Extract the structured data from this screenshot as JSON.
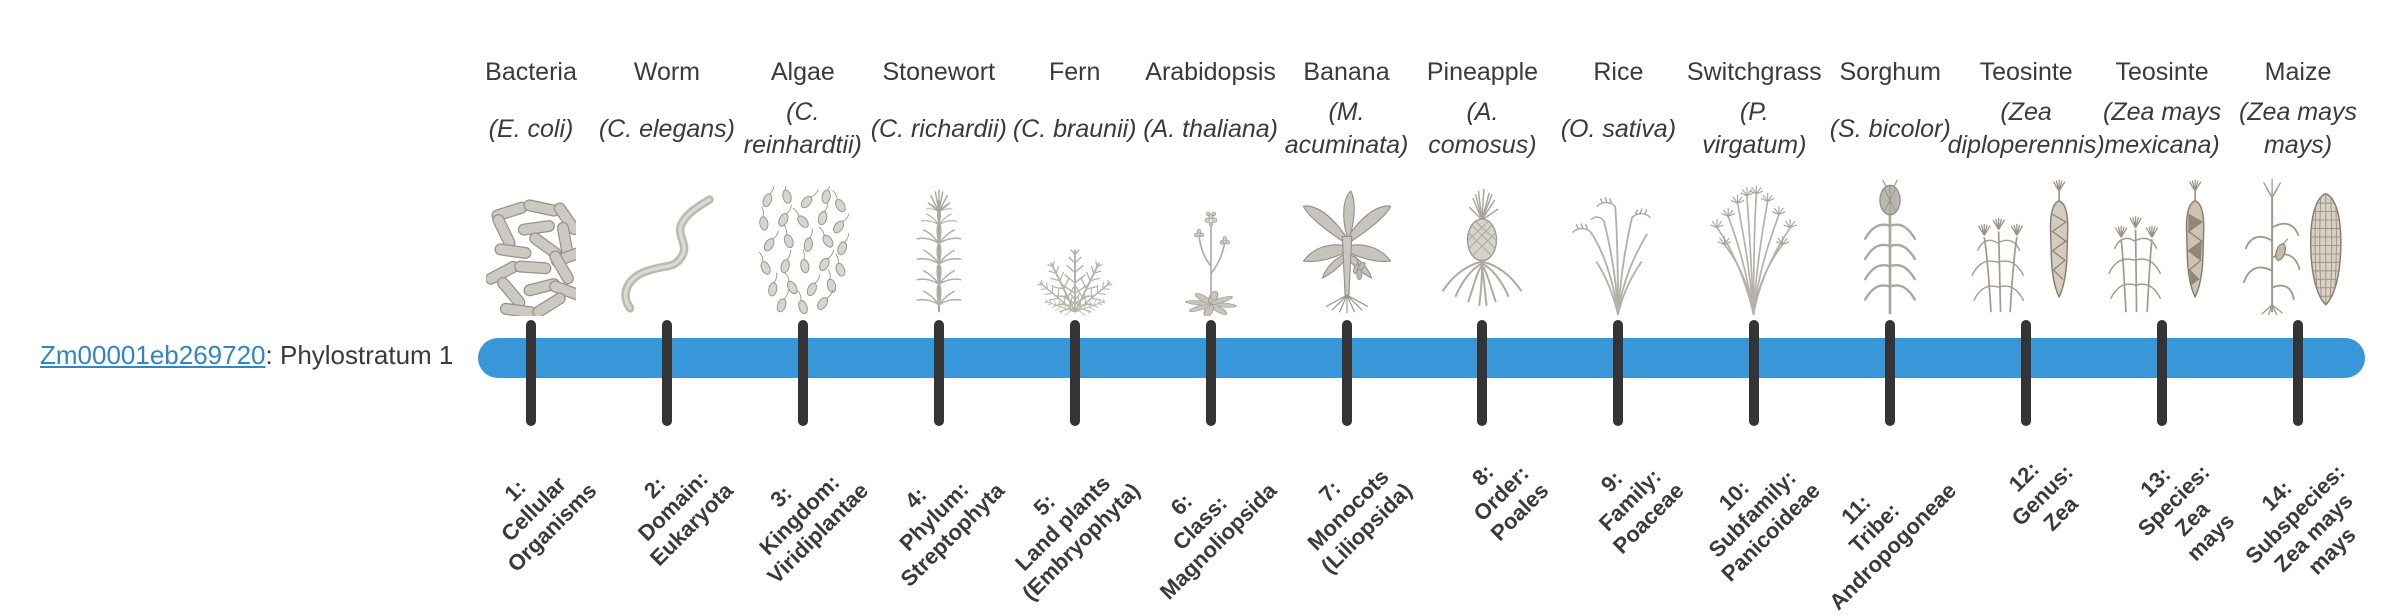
{
  "colors": {
    "background": "#ffffff",
    "text": "#3a3a3a",
    "link": "#2e86c3",
    "bar": "#3897d8",
    "tick": "#343434"
  },
  "gene": {
    "id": "Zm00001eb269720",
    "suffix": ": Phylostratum 1"
  },
  "organisms": [
    {
      "common_name": "Bacteria",
      "scientific_name": "(E. coli)",
      "icon": "bacteria-icon",
      "stratum_label": "1:\nCellular\nOrganisms"
    },
    {
      "common_name": "Worm",
      "scientific_name": "(C. elegans)",
      "icon": "worm-icon",
      "stratum_label": "2:\nDomain:\nEukaryota"
    },
    {
      "common_name": "Algae",
      "scientific_name": "(C.\nreinhardtii)",
      "icon": "algae-icon",
      "stratum_label": "3:\nKingdom:\nViridiplantae"
    },
    {
      "common_name": "Stonewort",
      "scientific_name": "(C. richardii)",
      "icon": "stonewort-icon",
      "stratum_label": "4:\nPhylum:\nStreptophyta"
    },
    {
      "common_name": "Fern",
      "scientific_name": "(C. braunii)",
      "icon": "fern-icon",
      "stratum_label": "5:\nLand plants\n(Embryophyta)"
    },
    {
      "common_name": "Arabidopsis",
      "scientific_name": "(A. thaliana)",
      "icon": "arabidopsis-icon",
      "stratum_label": "6:\nClass:\nMagnoliopsida"
    },
    {
      "common_name": "Banana",
      "scientific_name": "(M.\nacuminata)",
      "icon": "banana-icon",
      "stratum_label": "7:\nMonocots\n(Liliopsida)"
    },
    {
      "common_name": "Pineapple",
      "scientific_name": "(A.\ncomosus)",
      "icon": "pineapple-icon",
      "stratum_label": "8:\nOrder:\nPoales"
    },
    {
      "common_name": "Rice",
      "scientific_name": "(O. sativa)",
      "icon": "rice-icon",
      "stratum_label": "9:\nFamily:\nPoaceae"
    },
    {
      "common_name": "Switchgrass",
      "scientific_name": "(P.\nvirgatum)",
      "icon": "switchgrass-icon",
      "stratum_label": "10:\nSubfamily:\nPanicoideae"
    },
    {
      "common_name": "Sorghum",
      "scientific_name": "(S. bicolor)",
      "icon": "sorghum-icon",
      "stratum_label": "11:\nTribe:\nAndropogoneae"
    },
    {
      "common_name": "Teosinte",
      "scientific_name": "(Zea\ndiploperennis)",
      "icon": "teosinte-diploperennis-icon",
      "stratum_label": "12:\nGenus:\nZea"
    },
    {
      "common_name": "Teosinte",
      "scientific_name": "(Zea mays\nmexicana)",
      "icon": "teosinte-mexicana-icon",
      "stratum_label": "13:\nSpecies:\nZea\nmays"
    },
    {
      "common_name": "Maize",
      "scientific_name": "(Zea mays\nmays)",
      "icon": "maize-icon",
      "stratum_label": "14:\nSubspecies:\nZea mays\nmays"
    }
  ]
}
